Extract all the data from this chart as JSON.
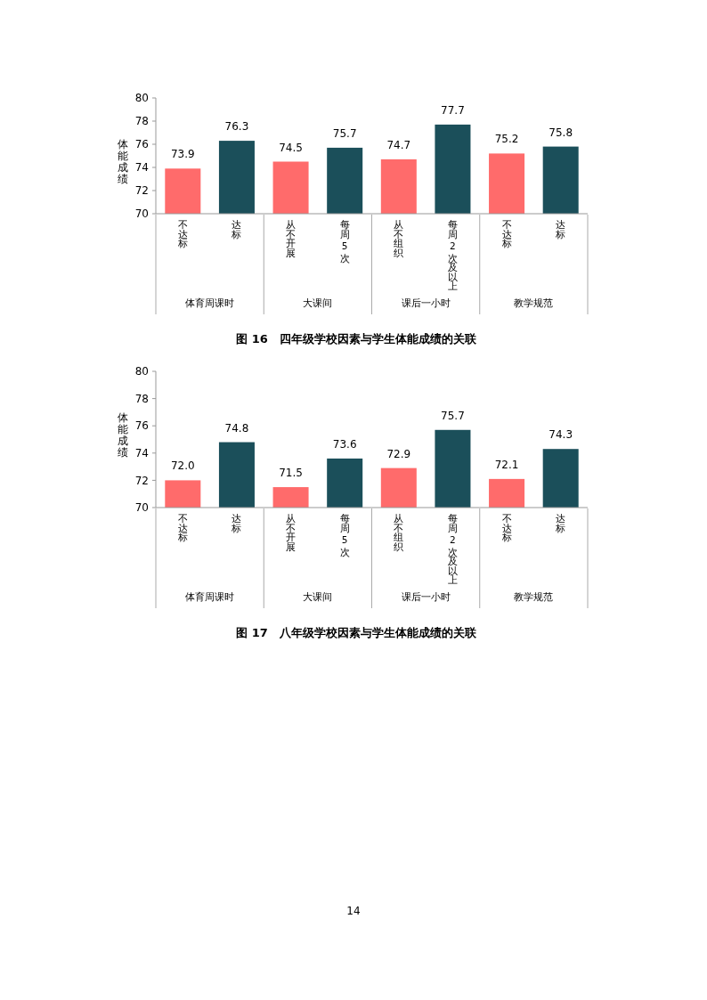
{
  "chart_data": [
    {
      "type": "bar",
      "title": "图 16　四年级学校因素与学生体能成绩的关联",
      "ylabel": "体能成绩",
      "categories": [
        "不达标",
        "达标",
        "从不开展",
        "每周 5 次",
        "从不组织",
        "每周 2 次及以上",
        "不达标",
        "达标"
      ],
      "values": [
        73.9,
        76.3,
        74.5,
        75.7,
        74.7,
        77.7,
        75.2,
        75.8
      ],
      "colors": [
        "#ff6b6b",
        "#1b4f5a",
        "#ff6b6b",
        "#1b4f5a",
        "#ff6b6b",
        "#1b4f5a",
        "#ff6b6b",
        "#1b4f5a"
      ],
      "ylim": [
        70,
        80
      ],
      "yticks": [
        70,
        72,
        74,
        76,
        78,
        80
      ],
      "data_labels": true,
      "grid": false,
      "legend": false,
      "annotations": [
        "体育周课时",
        "大课间",
        "课后一小时",
        "教学规范"
      ]
    },
    {
      "type": "bar",
      "title": "图 17　八年级学校因素与学生体能成绩的关联",
      "ylabel": "体能成绩",
      "categories": [
        "不达标",
        "达标",
        "从不开展",
        "每周 5 次",
        "从不组织",
        "每周 2 次及以上",
        "不达标",
        "达标"
      ],
      "values": [
        72.0,
        74.8,
        71.5,
        73.6,
        72.9,
        75.7,
        72.1,
        74.3
      ],
      "value_labels": [
        "72.0",
        "74.8",
        "71.5",
        "73.6",
        "72.9",
        "75.7",
        "72.1",
        "74.3"
      ],
      "colors": [
        "#ff6b6b",
        "#1b4f5a",
        "#ff6b6b",
        "#1b4f5a",
        "#ff6b6b",
        "#1b4f5a",
        "#ff6b6b",
        "#1b4f5a"
      ],
      "ylim": [
        70,
        80
      ],
      "yticks": [
        70,
        72,
        74,
        76,
        78,
        80
      ],
      "grid": false,
      "legend": false,
      "annotations": [
        "体育周课时",
        "大课间",
        "课后一小时",
        "教学规范",
        "14"
      ]
    }
  ]
}
